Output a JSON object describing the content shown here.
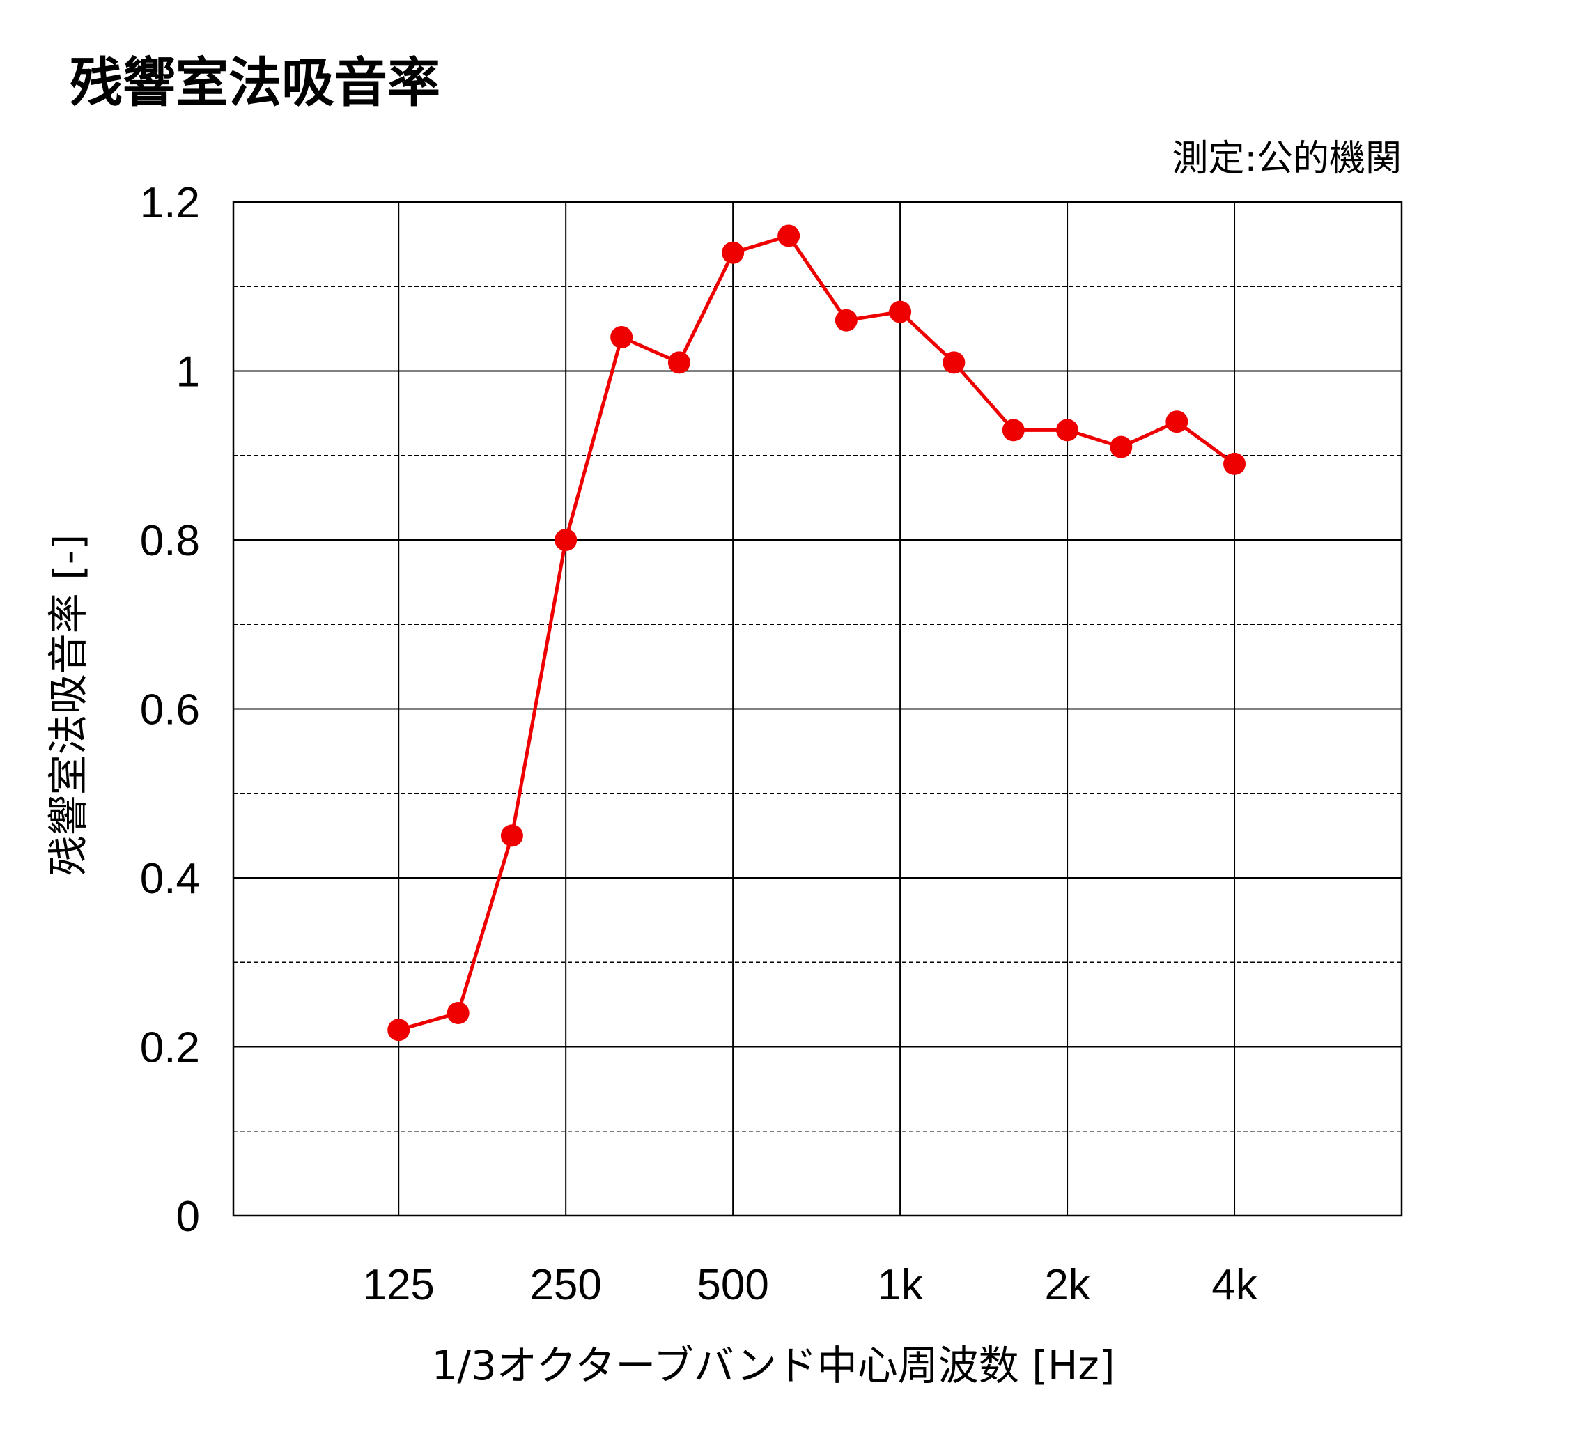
{
  "chart_data": {
    "type": "line",
    "title": "残響室法吸音率",
    "note": "測定:公的機関",
    "xlabel": "1/3オクターブバンド中心周波数 [Hz]",
    "ylabel": "残響室法吸音率 [-]",
    "ylim": [
      0,
      1.2
    ],
    "yticks": [
      "0",
      "0.2",
      "0.4",
      "0.6",
      "0.8",
      "1",
      "1.2"
    ],
    "y_minor_step": 0.1,
    "x_axis_scale": "log2 (1/3 octave bands)",
    "xlim_hz": [
      63,
      8000
    ],
    "xticks": [
      {
        "hz": 125,
        "label": "125"
      },
      {
        "hz": 250,
        "label": "250"
      },
      {
        "hz": 500,
        "label": "500"
      },
      {
        "hz": 1000,
        "label": "1k"
      },
      {
        "hz": 2000,
        "label": "2k"
      },
      {
        "hz": 4000,
        "label": "4k"
      }
    ],
    "grid": true,
    "line_color": "#ee0000",
    "series": [
      {
        "x": [
          125,
          160,
          200,
          250,
          315,
          400,
          500,
          630,
          800,
          1000,
          1250,
          1600,
          2000,
          2500,
          3150,
          4000
        ],
        "values": [
          0.22,
          0.24,
          0.45,
          0.8,
          1.04,
          1.01,
          1.14,
          1.16,
          1.06,
          1.07,
          1.01,
          0.93,
          0.93,
          0.91,
          0.94,
          0.89
        ]
      }
    ]
  }
}
